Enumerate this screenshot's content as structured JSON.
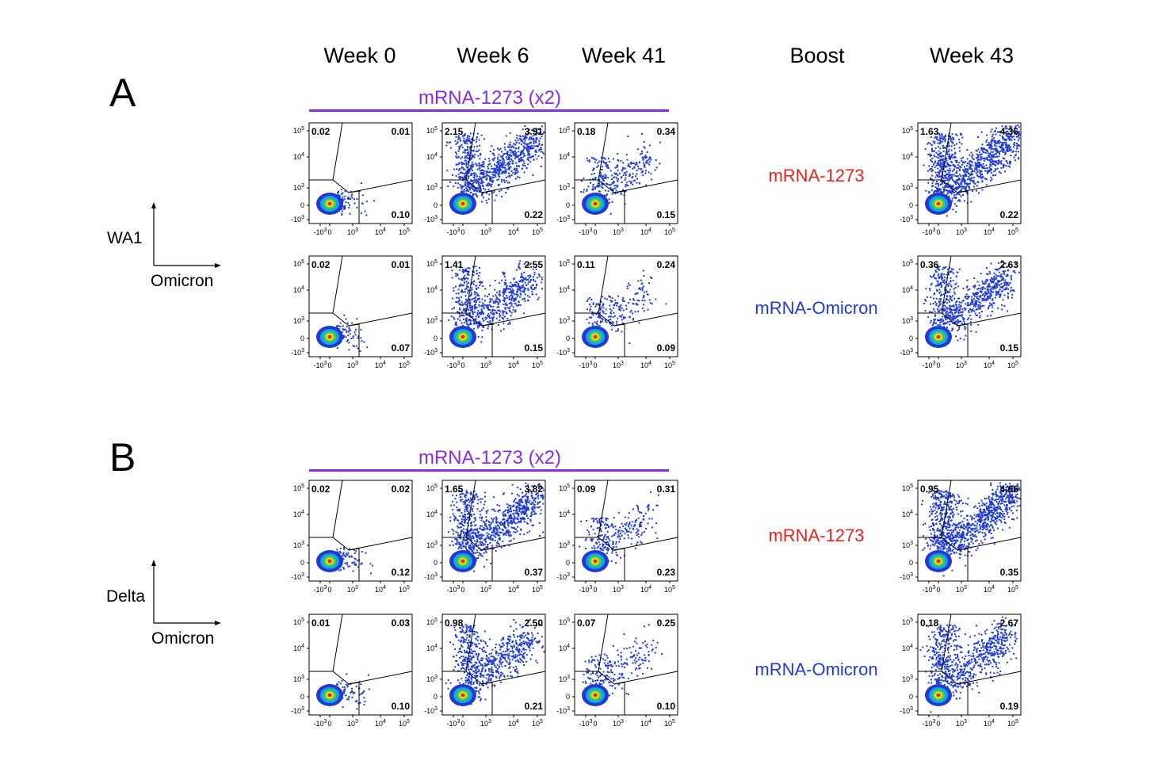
{
  "headers": {
    "week0": "Week 0",
    "week6": "Week 6",
    "week41": "Week 41",
    "boost": "Boost",
    "week43": "Week 43"
  },
  "panels": [
    {
      "letter": "A",
      "group_label": "mRNA-1273 (x2)",
      "y_marker": "WA1",
      "x_marker": "Omicron",
      "rows": [
        {
          "boost": "mRNA-1273",
          "boost_color": "#e8231d"
        },
        {
          "boost": "mRNA-Omicron",
          "boost_color": "#1f3bd1"
        }
      ]
    },
    {
      "letter": "B",
      "group_label": "mRNA-1273 (x2)",
      "y_marker": "Delta",
      "x_marker": "Omicron",
      "rows": [
        {
          "boost": "mRNA-1273",
          "boost_color": "#e8231d"
        },
        {
          "boost": "mRNA-Omicron",
          "boost_color": "#1f3bd1"
        }
      ]
    }
  ],
  "axis_ticks": {
    "x": [
      "-10",
      "0",
      "10",
      "10",
      "10"
    ],
    "x_exp": [
      "3",
      "",
      "3",
      "4",
      "5"
    ],
    "y": [
      "10",
      "10",
      "10",
      "0",
      "-10"
    ],
    "y_exp": [
      "5",
      "4",
      "3",
      "",
      "3"
    ]
  },
  "colors": {
    "density_low": "#1f3bd1",
    "density_high": "#e8231d",
    "accent": "#8a2be2"
  },
  "chart_data": {
    "type": "scatter",
    "description_kind": "flow cytometry density plots with quadrant gates, values are % of gated cells",
    "quadrant_order": [
      "upper-left",
      "upper-right",
      "lower-right"
    ],
    "columns": [
      "Week 0",
      "Week 6",
      "Week 41",
      "Week 43"
    ],
    "plots": [
      {
        "panel": "A",
        "row": 0,
        "column": "Week 0",
        "quadrants": [
          "0.02",
          "0.01",
          "0.10"
        ],
        "spread": 0.05
      },
      {
        "panel": "A",
        "row": 0,
        "column": "Week 6",
        "quadrants": [
          "2.15",
          "3.91",
          "0.22"
        ],
        "spread": 1.0
      },
      {
        "panel": "A",
        "row": 0,
        "column": "Week 41",
        "quadrants": [
          "0.18",
          "0.34",
          "0.15"
        ],
        "spread": 0.3
      },
      {
        "panel": "A",
        "row": 0,
        "column": "Week 43",
        "quadrants": [
          "1.63",
          "4.36",
          "0.22"
        ],
        "spread": 1.2
      },
      {
        "panel": "A",
        "row": 1,
        "column": "Week 0",
        "quadrants": [
          "0.02",
          "0.01",
          "0.07"
        ],
        "spread": 0.05
      },
      {
        "panel": "A",
        "row": 1,
        "column": "Week 6",
        "quadrants": [
          "1.41",
          "2.55",
          "0.15"
        ],
        "spread": 0.75
      },
      {
        "panel": "A",
        "row": 1,
        "column": "Week 41",
        "quadrants": [
          "0.11",
          "0.24",
          "0.09"
        ],
        "spread": 0.2
      },
      {
        "panel": "A",
        "row": 1,
        "column": "Week 43",
        "quadrants": [
          "0.36",
          "2.63",
          "0.15"
        ],
        "spread": 0.8
      },
      {
        "panel": "B",
        "row": 0,
        "column": "Week 0",
        "quadrants": [
          "0.02",
          "0.02",
          "0.12"
        ],
        "spread": 0.05
      },
      {
        "panel": "B",
        "row": 0,
        "column": "Week 6",
        "quadrants": [
          "1.65",
          "3.82",
          "0.37"
        ],
        "spread": 1.0
      },
      {
        "panel": "B",
        "row": 0,
        "column": "Week 41",
        "quadrants": [
          "0.09",
          "0.31",
          "0.23"
        ],
        "spread": 0.25
      },
      {
        "panel": "B",
        "row": 0,
        "column": "Week 43",
        "quadrants": [
          "0.95",
          "4.66",
          "0.35"
        ],
        "spread": 1.2
      },
      {
        "panel": "B",
        "row": 1,
        "column": "Week 0",
        "quadrants": [
          "0.01",
          "0.03",
          "0.10"
        ],
        "spread": 0.05
      },
      {
        "panel": "B",
        "row": 1,
        "column": "Week 6",
        "quadrants": [
          "0.98",
          "2.50",
          "0.21"
        ],
        "spread": 0.75
      },
      {
        "panel": "B",
        "row": 1,
        "column": "Week 41",
        "quadrants": [
          "0.07",
          "0.25",
          "0.10"
        ],
        "spread": 0.2
      },
      {
        "panel": "B",
        "row": 1,
        "column": "Week 43",
        "quadrants": [
          "0.18",
          "2.67",
          "0.19"
        ],
        "spread": 0.8
      }
    ]
  }
}
